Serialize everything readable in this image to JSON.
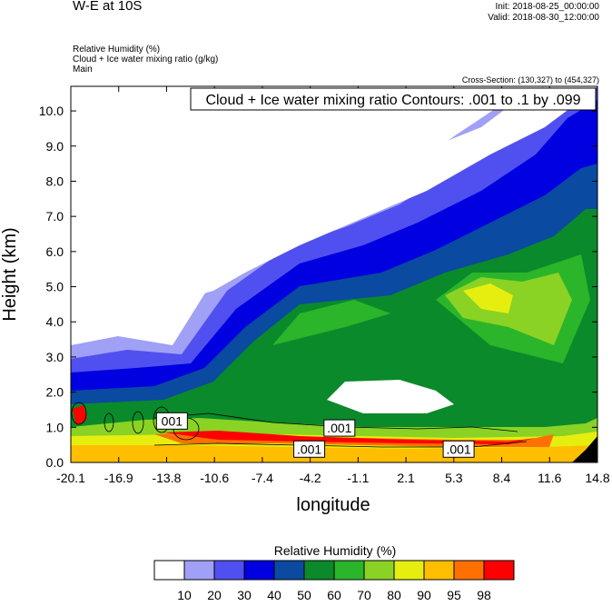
{
  "header": {
    "title": "W-E at 10S",
    "init": "Init: 2018-08-25_00:00:00",
    "valid": "Valid: 2018-08-30_12:00:00",
    "field1": "Relative Humidity   (%)",
    "field2": "Cloud + Ice water mixing ratio   (g/kg)",
    "field3": "Main",
    "cross_section": "Cross-Section: (130,327) to (454,327)"
  },
  "chart_data": {
    "type": "heatmap",
    "title": "Cloud + Ice water mixing ratio Contours: .001 to .1 by .099",
    "xlabel": "longitude",
    "ylabel": "Height (km)",
    "xlim": [
      -20.1,
      14.8
    ],
    "ylim": [
      0.0,
      10.7
    ],
    "x_ticks": [
      "-20.1",
      "-16.9",
      "-13.8",
      "-10.6",
      "-7.4",
      "-4.2",
      "-1.1",
      "2.1",
      "5.3",
      "8.4",
      "11.6",
      "14.8"
    ],
    "y_ticks": [
      "0.0",
      "1.0",
      "2.0",
      "3.0",
      "4.0",
      "5.0",
      "6.0",
      "7.0",
      "8.0",
      "9.0",
      "10.0"
    ],
    "colorbar": {
      "label": "Relative Humidity  (%)",
      "levels": [
        "10",
        "20",
        "30",
        "40",
        "50",
        "60",
        "70",
        "80",
        "90",
        "95",
        "98"
      ],
      "colors": [
        "#ffffff",
        "#a0a0f6",
        "#5050f0",
        "#0000e0",
        "#0a4aa0",
        "#0a8a2a",
        "#2bb52b",
        "#8ad224",
        "#e6ee10",
        "#ffbe00",
        "#ff7000",
        "#ff0000"
      ]
    },
    "contour_labels": [
      {
        "text": "001",
        "lon": -13.4,
        "height": 1.18
      },
      {
        "text": ".001",
        "lon": -2.3,
        "height": 0.98
      },
      {
        "text": ".001",
        "lon": -4.3,
        "height": 0.38
      },
      {
        "text": ".001",
        "lon": 5.6,
        "height": 0.38
      }
    ]
  }
}
